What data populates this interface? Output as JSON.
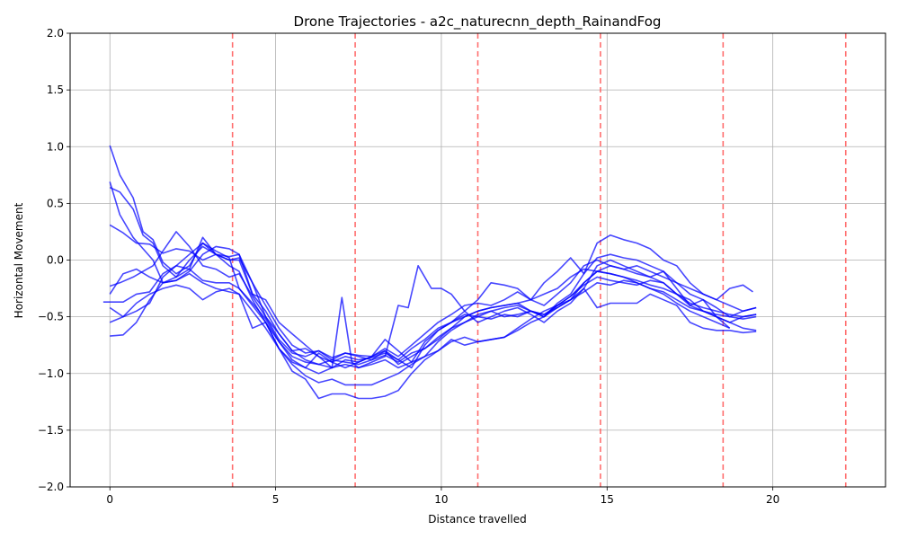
{
  "chart_data": {
    "type": "line",
    "title": "Drone Trajectories - a2c_naturecnn_depth_RainandFog",
    "xlabel": "Distance travelled",
    "ylabel": "Horizontal Movement",
    "xlim": [
      -1.2,
      23.4
    ],
    "ylim": [
      -2.0,
      2.0
    ],
    "xticks": [
      0,
      5,
      10,
      15,
      20
    ],
    "yticks": [
      -2.0,
      -1.5,
      -1.0,
      -0.5,
      0.0,
      0.5,
      1.0,
      1.5,
      2.0
    ],
    "ytick_labels": [
      "−2.0",
      "−1.5",
      "−1.0",
      "−0.5",
      "0.0",
      "0.5",
      "1.0",
      "1.5",
      "2.0"
    ],
    "grid": true,
    "line_color": "#0000ff",
    "line_alpha": 0.72,
    "vline_color": "#ff5555",
    "vlines": [
      3.7,
      7.4,
      11.1,
      14.8,
      18.5,
      22.2
    ],
    "series": [
      {
        "x": [
          0,
          0.3,
          0.7,
          1.0,
          1.3,
          1.6,
          2.0,
          2.4,
          2.8,
          3.2,
          3.6,
          3.9,
          4.3,
          4.7,
          5.1,
          5.5,
          5.9,
          6.3,
          6.7,
          7.1,
          7.5,
          7.9,
          8.3,
          8.7,
          9.1,
          9.5,
          9.9,
          10.3,
          10.7,
          11.1,
          11.5,
          11.9,
          12.3,
          12.7,
          13.1,
          13.5,
          13.9,
          14.3,
          14.7,
          15.1,
          15.5,
          15.9,
          16.3,
          16.7,
          17.1,
          17.5,
          17.9,
          18.3,
          18.7
        ],
        "y": [
          1.01,
          0.75,
          0.55,
          0.25,
          0.18,
          -0.02,
          -0.12,
          -0.05,
          0.15,
          0.08,
          0.02,
          -0.25,
          -0.38,
          -0.52,
          -0.72,
          -0.88,
          -0.95,
          -0.82,
          -0.9,
          -0.85,
          -0.88,
          -0.86,
          -0.82,
          -0.88,
          -0.78,
          -0.7,
          -0.6,
          -0.55,
          -0.48,
          -0.5,
          -0.45,
          -0.5,
          -0.48,
          -0.45,
          -0.5,
          -0.4,
          -0.32,
          -0.2,
          -0.1,
          -0.05,
          -0.08,
          -0.12,
          -0.15,
          -0.1,
          -0.25,
          -0.4,
          -0.35,
          -0.5,
          -0.6
        ]
      },
      {
        "x": [
          0,
          0.3,
          0.7,
          1.0,
          1.3,
          1.6,
          2.0,
          2.4,
          2.8,
          3.2,
          3.6,
          3.9,
          4.3,
          4.7,
          5.1,
          5.5,
          5.9,
          6.3,
          6.7,
          7.1,
          7.5,
          7.9,
          8.3,
          8.7,
          9.1,
          9.5,
          9.9,
          10.3,
          10.7,
          11.1,
          11.5,
          11.9,
          12.3,
          12.7,
          13.1,
          13.5,
          13.9,
          14.3,
          14.7,
          15.1,
          15.5,
          15.9,
          16.3,
          16.7,
          17.1,
          17.5,
          17.9,
          18.3,
          18.7,
          19.1,
          19.5
        ],
        "y": [
          0.69,
          0.4,
          0.2,
          0.1,
          0.0,
          -0.2,
          -0.18,
          -0.1,
          0.05,
          0.12,
          0.1,
          0.05,
          -0.3,
          -0.45,
          -0.65,
          -0.8,
          -0.78,
          -0.85,
          -0.95,
          -0.88,
          -0.9,
          -0.85,
          -0.7,
          -0.8,
          -0.9,
          -0.72,
          -0.62,
          -0.55,
          -0.45,
          -0.55,
          -0.5,
          -0.45,
          -0.42,
          -0.48,
          -0.55,
          -0.45,
          -0.38,
          -0.25,
          -0.05,
          0.0,
          -0.05,
          -0.1,
          -0.15,
          -0.2,
          -0.3,
          -0.35,
          -0.45,
          -0.5,
          -0.55,
          -0.5,
          -0.48
        ]
      },
      {
        "x": [
          0,
          0.3,
          0.7,
          1.0,
          1.3,
          1.6,
          2.0,
          2.4,
          2.8,
          3.2,
          3.6,
          3.9,
          4.3,
          4.7,
          5.1,
          5.5,
          5.9,
          6.3,
          6.7,
          7.1,
          7.5,
          7.9,
          8.3,
          8.7,
          9.1,
          9.5,
          9.9,
          10.3,
          10.7,
          11.1,
          11.5,
          11.9,
          12.3,
          12.7,
          13.1,
          13.5,
          13.9,
          14.3,
          14.7,
          15.1,
          15.5,
          15.9,
          16.3,
          16.7,
          17.1,
          17.5,
          17.9,
          18.3,
          18.7,
          19.1,
          19.5
        ],
        "y": [
          0.64,
          0.6,
          0.45,
          0.22,
          0.15,
          -0.05,
          -0.15,
          0.0,
          0.12,
          0.05,
          0.0,
          0.02,
          -0.2,
          -0.4,
          -0.6,
          -0.75,
          -0.82,
          -0.8,
          -0.88,
          -0.82,
          -0.85,
          -0.88,
          -0.8,
          -0.92,
          -0.85,
          -0.78,
          -0.68,
          -0.6,
          -0.5,
          -0.45,
          -0.42,
          -0.4,
          -0.38,
          -0.45,
          -0.5,
          -0.38,
          -0.3,
          -0.12,
          0.02,
          0.05,
          0.02,
          0.0,
          -0.05,
          -0.1,
          -0.2,
          -0.3,
          -0.35,
          -0.42,
          -0.5,
          -0.45,
          -0.42
        ]
      },
      {
        "x": [
          0,
          0.4,
          0.8,
          1.2,
          1.6,
          2.0,
          2.4,
          2.8,
          3.2,
          3.6,
          3.9,
          4.3,
          4.7,
          5.1,
          5.5,
          5.9,
          6.3,
          6.7,
          7.1,
          7.5,
          7.9,
          8.3,
          8.7,
          9.1,
          9.5,
          9.9,
          10.3,
          10.7,
          11.1,
          11.5,
          11.9,
          12.3,
          12.7,
          13.1,
          13.5,
          13.9,
          14.3,
          14.7,
          15.1,
          15.5,
          15.9,
          16.3,
          16.7,
          17.1,
          17.5,
          17.9,
          18.3,
          18.7,
          19.1,
          19.5
        ],
        "y": [
          0.31,
          0.24,
          0.15,
          0.14,
          0.06,
          0.1,
          0.08,
          0.0,
          0.05,
          -0.05,
          -0.1,
          -0.35,
          -0.55,
          -0.72,
          -0.85,
          -0.9,
          -0.92,
          -0.88,
          -0.9,
          -0.92,
          -0.88,
          -0.84,
          -0.9,
          -0.82,
          -0.78,
          -0.7,
          -0.6,
          -0.55,
          -0.5,
          -0.52,
          -0.48,
          -0.5,
          -0.45,
          -0.48,
          -0.42,
          -0.35,
          -0.2,
          -0.1,
          -0.12,
          -0.15,
          -0.18,
          -0.22,
          -0.25,
          -0.3,
          -0.4,
          -0.45,
          -0.5,
          -0.55,
          -0.6,
          -0.62
        ]
      },
      {
        "x": [
          0,
          0.3,
          0.7,
          1.0,
          1.3,
          1.6,
          2.0,
          2.4,
          2.8,
          3.2,
          3.6,
          3.9,
          4.3,
          4.7,
          5.1,
          5.5,
          5.9,
          6.3,
          6.7,
          7.1,
          7.5,
          7.9,
          8.3,
          8.7,
          9.1,
          9.5,
          9.9,
          10.3,
          10.7,
          11.1,
          11.5,
          11.9,
          12.3,
          12.7,
          13.1,
          13.5,
          13.9,
          14.3,
          14.7,
          15.1,
          15.5,
          15.9,
          16.3,
          16.7,
          17.1,
          17.5,
          17.9,
          18.3,
          18.7,
          19.1,
          19.5
        ],
        "y": [
          -0.23,
          -0.2,
          -0.15,
          -0.1,
          -0.05,
          0.08,
          0.25,
          0.12,
          -0.05,
          -0.08,
          -0.15,
          -0.12,
          -0.32,
          -0.5,
          -0.7,
          -0.82,
          -0.85,
          -0.8,
          -0.86,
          -0.82,
          -0.84,
          -0.85,
          -0.78,
          -0.85,
          -0.75,
          -0.65,
          -0.55,
          -0.48,
          -0.4,
          -0.38,
          -0.4,
          -0.35,
          -0.28,
          -0.35,
          -0.3,
          -0.25,
          -0.15,
          -0.08,
          -0.1,
          -0.12,
          -0.15,
          -0.2,
          -0.25,
          -0.28,
          -0.35,
          -0.42,
          -0.45,
          -0.48,
          -0.5,
          -0.52,
          -0.5
        ]
      },
      {
        "x": [
          0,
          0.4,
          0.8,
          1.2,
          1.6,
          2.0,
          2.4,
          2.8,
          3.2,
          3.6,
          3.9,
          4.3,
          4.7,
          5.1,
          5.5,
          5.9,
          6.3,
          6.7,
          7.1,
          7.5,
          7.9,
          8.3,
          8.7,
          9.1,
          9.5,
          9.9,
          10.3,
          10.7,
          11.1,
          11.5,
          11.9,
          12.3,
          12.7,
          13.1,
          13.5,
          13.9,
          14.3,
          14.7,
          15.1,
          15.5,
          15.9,
          16.3,
          16.7,
          17.1,
          17.5,
          17.9,
          18.3,
          18.7,
          19.1,
          19.5
        ],
        "y": [
          -0.3,
          -0.12,
          -0.08,
          -0.15,
          -0.2,
          -0.15,
          -0.08,
          -0.18,
          -0.2,
          -0.2,
          -0.25,
          -0.4,
          -0.55,
          -0.78,
          -0.9,
          -0.95,
          -1.0,
          -0.95,
          -0.92,
          -0.95,
          -0.92,
          -0.88,
          -0.95,
          -0.9,
          -0.85,
          -0.72,
          -0.62,
          -0.55,
          -0.48,
          -0.45,
          -0.42,
          -0.4,
          -0.45,
          -0.48,
          -0.4,
          -0.32,
          -0.22,
          -0.15,
          -0.18,
          -0.2,
          -0.22,
          -0.18,
          -0.2,
          -0.3,
          -0.38,
          -0.42,
          -0.45,
          -0.48,
          -0.5,
          -0.48
        ]
      },
      {
        "x": [
          0,
          0.4,
          0.8,
          1.2,
          1.6,
          2.0,
          2.4,
          2.8,
          3.2,
          3.6,
          3.9,
          4.3,
          4.7,
          5.1,
          5.5,
          5.9,
          6.3,
          6.7,
          7.1,
          7.5,
          7.9,
          8.3,
          8.7,
          9.1,
          9.5,
          9.9,
          10.3,
          10.7,
          11.1,
          11.5,
          11.9,
          12.3,
          12.7,
          13.1,
          13.5,
          13.9,
          14.3,
          14.7,
          15.1,
          15.5,
          15.9,
          16.3,
          16.7,
          17.1,
          17.5,
          17.9,
          18.3,
          18.7
        ],
        "y": [
          -0.42,
          -0.5,
          -0.38,
          -0.3,
          -0.25,
          -0.22,
          -0.25,
          -0.35,
          -0.28,
          -0.25,
          -0.3,
          -0.45,
          -0.6,
          -0.78,
          -0.92,
          -1.02,
          -1.08,
          -1.05,
          -1.1,
          -1.1,
          -1.1,
          -1.05,
          -1.0,
          -0.92,
          -0.85,
          -0.8,
          -0.72,
          -0.68,
          -0.72,
          -0.7,
          -0.68,
          -0.6,
          -0.52,
          -0.45,
          -0.4,
          -0.35,
          -0.28,
          -0.2,
          -0.22,
          -0.18,
          -0.2,
          -0.25,
          -0.3,
          -0.38,
          -0.45,
          -0.5,
          -0.55,
          -0.6
        ]
      },
      {
        "x": [
          0,
          0.4,
          0.8,
          1.2,
          1.6,
          2.0,
          2.4,
          2.8,
          3.2,
          3.6,
          3.9,
          4.3,
          4.7,
          5.1,
          5.5,
          5.9,
          6.3,
          6.7,
          7.1,
          7.5,
          7.9,
          8.3,
          8.7,
          9.1,
          9.5,
          9.9,
          10.3,
          10.7,
          11.1,
          11.5,
          11.9,
          12.3,
          12.7,
          13.1,
          13.5,
          13.9,
          14.3,
          14.7,
          15.1,
          15.5,
          15.9,
          16.3,
          16.7,
          17.1,
          17.5,
          17.9,
          18.3,
          18.7,
          19.1,
          19.5
        ],
        "y": [
          -0.67,
          -0.66,
          -0.55,
          -0.35,
          -0.2,
          -0.18,
          -0.12,
          -0.2,
          -0.25,
          -0.28,
          -0.3,
          -0.6,
          -0.55,
          -0.78,
          -0.98,
          -1.05,
          -1.22,
          -1.18,
          -1.18,
          -1.22,
          -1.22,
          -1.2,
          -1.15,
          -1.0,
          -0.88,
          -0.8,
          -0.7,
          -0.75,
          -0.72,
          -0.7,
          -0.68,
          -0.62,
          -0.55,
          -0.5,
          -0.42,
          -0.35,
          -0.25,
          -0.42,
          -0.38,
          -0.38,
          -0.38,
          -0.3,
          -0.35,
          -0.4,
          -0.55,
          -0.6,
          -0.62,
          -0.62,
          -0.64,
          -0.63
        ]
      },
      {
        "x": [
          -0.2,
          0.4,
          0.8,
          1.2,
          1.6,
          2.0,
          2.4,
          2.8,
          3.2,
          3.6,
          3.9,
          4.3,
          4.7,
          5.1,
          5.5,
          5.9,
          6.3,
          6.7,
          7.1,
          7.5,
          7.9,
          8.3,
          8.7,
          9.1,
          9.5,
          9.9,
          10.3,
          10.7,
          11.1,
          11.5,
          11.9,
          12.3,
          12.7,
          13.1,
          13.5,
          13.9,
          14.3,
          14.7,
          15.1,
          15.5,
          15.9,
          16.3,
          16.7,
          17.1,
          17.5,
          17.9,
          18.3,
          18.7,
          19.1,
          19.5
        ],
        "y": [
          -0.37,
          -0.37,
          -0.3,
          -0.28,
          -0.12,
          -0.05,
          -0.08,
          0.2,
          0.05,
          0.0,
          0.0,
          -0.3,
          -0.35,
          -0.55,
          -0.65,
          -0.75,
          -0.85,
          -0.9,
          -0.95,
          -0.9,
          -0.85,
          -0.8,
          -0.88,
          -0.95,
          -0.75,
          -0.62,
          -0.55,
          -0.5,
          -0.45,
          -0.42,
          -0.4,
          -0.38,
          -0.35,
          -0.4,
          -0.3,
          -0.2,
          -0.05,
          0.0,
          -0.05,
          -0.08,
          -0.05,
          -0.1,
          -0.15,
          -0.2,
          -0.25,
          -0.3,
          -0.35,
          -0.4,
          -0.45,
          -0.42
        ]
      },
      {
        "x": [
          0,
          0.4,
          0.8,
          1.2,
          1.6,
          2.0,
          2.4,
          2.8,
          3.2,
          3.6,
          3.9,
          4.3,
          4.7,
          5.1,
          5.5,
          5.9,
          6.3,
          6.7,
          7.0,
          7.3,
          7.5,
          7.9,
          8.3,
          8.7,
          9.0,
          9.3,
          9.7,
          10.0,
          10.3,
          10.7,
          11.1,
          11.5,
          11.9,
          12.3,
          12.7,
          13.1,
          13.5,
          13.9,
          14.3,
          14.7,
          15.1,
          15.5,
          15.9,
          16.3,
          16.7,
          17.1,
          17.5,
          17.9,
          18.3,
          18.7,
          19.1,
          19.4
        ],
        "y": [
          -0.55,
          -0.5,
          -0.45,
          -0.38,
          -0.15,
          -0.05,
          0.05,
          0.15,
          0.05,
          0.03,
          0.05,
          -0.2,
          -0.5,
          -0.65,
          -0.8,
          -0.88,
          -0.92,
          -0.95,
          -0.33,
          -0.9,
          -0.95,
          -0.9,
          -0.85,
          -0.4,
          -0.42,
          -0.05,
          -0.25,
          -0.25,
          -0.3,
          -0.45,
          -0.35,
          -0.2,
          -0.22,
          -0.25,
          -0.35,
          -0.2,
          -0.1,
          0.02,
          -0.12,
          0.15,
          0.22,
          0.18,
          0.15,
          0.1,
          0.0,
          -0.05,
          -0.2,
          -0.3,
          -0.35,
          -0.25,
          -0.22,
          -0.28
        ]
      }
    ]
  }
}
